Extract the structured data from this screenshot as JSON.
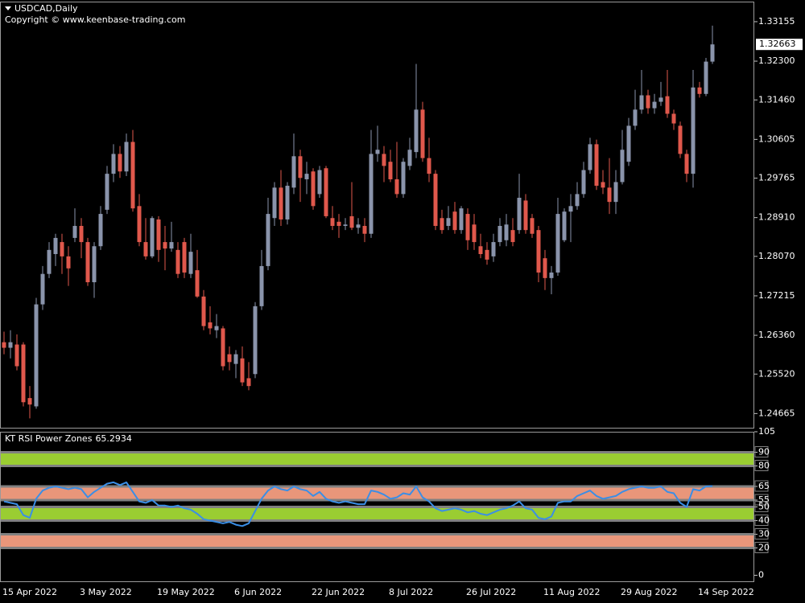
{
  "chart_data": [
    {
      "type": "candlestick",
      "title": "USDCAD,Daily",
      "subtitle": "Copyright © www.keenbase-trading.com",
      "up_color": "#8a94ab",
      "down_color": "#e0584c",
      "categories": [
        "15 Apr 2022",
        null,
        null,
        null,
        null,
        null,
        null,
        null,
        null,
        null,
        null,
        null,
        "3 May 2022",
        null,
        null,
        null,
        null,
        null,
        null,
        null,
        null,
        null,
        null,
        null,
        "19 May 2022",
        null,
        null,
        null,
        null,
        null,
        null,
        null,
        null,
        null,
        null,
        null,
        "6 Jun 2022",
        null,
        null,
        null,
        null,
        null,
        null,
        null,
        null,
        null,
        null,
        null,
        "22 Jun 2022",
        null,
        null,
        null,
        null,
        null,
        null,
        null,
        null,
        null,
        null,
        null,
        "8 Jul 2022",
        null,
        null,
        null,
        null,
        null,
        null,
        null,
        null,
        null,
        null,
        null,
        "26 Jul 2022",
        null,
        null,
        null,
        null,
        null,
        null,
        null,
        null,
        null,
        null,
        null,
        "11 Aug 2022",
        null,
        null,
        null,
        null,
        null,
        null,
        null,
        null,
        null,
        null,
        null,
        "29 Aug 2022",
        null,
        null,
        null,
        null,
        null,
        null,
        null,
        null,
        null,
        null,
        null,
        "14 Sep 2022",
        null,
        null
      ],
      "open": [
        1.2621,
        1.2609,
        1.2616,
        1.2616,
        1.25,
        1.2482,
        1.2703,
        1.2769,
        1.2812,
        1.2838,
        1.2807,
        1.2847,
        1.2873,
        1.2838,
        1.2751,
        1.2829,
        1.2908,
        1.2986,
        1.3029,
        1.2991,
        1.3055,
        1.2916,
        1.2838,
        1.2807,
        1.2887,
        1.2838,
        1.2824,
        1.2821,
        1.2838,
        1.2769,
        1.2777,
        1.272,
        1.2664,
        1.2647,
        1.2651,
        1.2595,
        1.2574,
        1.2586,
        1.2543,
        1.2552,
        1.2699,
        1.2786,
        1.289,
        1.2956,
        1.2887,
        1.2956,
        1.3024,
        1.2974,
        1.2991,
        1.2942,
        1.2998,
        1.289,
        1.2882,
        1.2873,
        1.2894,
        1.2869,
        1.2873,
        1.2856,
        1.3029,
        1.3029,
        1.3012,
        1.2974,
        1.2942,
        1.3003,
        1.3033,
        1.3125,
        1.302,
        1.2986,
        1.289,
        1.2873,
        1.2904,
        1.2864,
        1.2899,
        1.2876,
        1.2829,
        1.2821,
        1.2807,
        1.2838,
        1.2842,
        1.2864,
        1.2864,
        1.2928,
        1.289,
        1.2864,
        1.2803,
        1.276,
        1.2772,
        1.2842,
        1.2904,
        1.2916,
        1.2942,
        1.2994,
        1.305,
        1.2968,
        1.2956,
        1.2925,
        1.2968,
        1.3012,
        1.309,
        1.3125,
        1.3156,
        1.3128,
        1.3142,
        1.3154,
        1.3116,
        1.309,
        1.3029,
        1.2986,
        1.3173,
        1.3159,
        1.3229
      ],
      "high": [
        1.2644,
        1.2647,
        1.2638,
        1.2621,
        1.2526,
        1.2717,
        1.2786,
        1.2838,
        1.2856,
        1.2856,
        1.2829,
        1.2911,
        1.289,
        1.2847,
        1.2838,
        1.2916,
        1.3003,
        1.305,
        1.3046,
        1.3073,
        1.3081,
        1.2942,
        1.289,
        1.2894,
        1.2894,
        1.2873,
        1.2882,
        1.2838,
        1.2847,
        1.2856,
        1.2821,
        1.2734,
        1.2699,
        1.2682,
        1.2656,
        1.2612,
        1.2604,
        1.2612,
        1.2578,
        1.2708,
        1.2821,
        1.2934,
        1.2968,
        1.2994,
        1.2968,
        1.3073,
        1.3038,
        1.3012,
        1.2998,
        1.3003,
        1.3003,
        1.2916,
        1.2899,
        1.289,
        1.2968,
        1.289,
        1.289,
        1.3081,
        1.309,
        1.3046,
        1.3038,
        1.3055,
        1.302,
        1.3064,
        1.3224,
        1.3142,
        1.3064,
        1.2994,
        1.2908,
        1.2916,
        1.2925,
        1.2916,
        1.2911,
        1.2899,
        1.2856,
        1.2838,
        1.2856,
        1.289,
        1.2899,
        1.289,
        1.2986,
        1.2942,
        1.2899,
        1.2873,
        1.2821,
        1.2786,
        1.2934,
        1.2911,
        1.2942,
        1.2968,
        1.3012,
        1.3064,
        1.306,
        1.2994,
        1.302,
        1.2994,
        1.3081,
        1.3107,
        1.3168,
        1.3211,
        1.3168,
        1.3159,
        1.3185,
        1.3211,
        1.3125,
        1.3099,
        1.3038,
        1.3211,
        1.3185,
        1.3237,
        1.3307
      ],
      "low": [
        1.2595,
        1.2586,
        1.256,
        1.2482,
        1.2456,
        1.2477,
        1.2691,
        1.276,
        1.2786,
        1.2769,
        1.2743,
        1.2838,
        1.2803,
        1.2743,
        1.2717,
        1.2821,
        1.2899,
        1.2968,
        1.2977,
        1.2981,
        1.2904,
        1.2829,
        1.28,
        1.2803,
        1.2795,
        1.2777,
        1.2817,
        1.276,
        1.276,
        1.276,
        1.2717,
        1.2647,
        1.2638,
        1.263,
        1.256,
        1.256,
        1.2543,
        1.2526,
        1.2517,
        1.2543,
        1.2691,
        1.2777,
        1.2873,
        1.2873,
        1.2876,
        1.2942,
        1.2925,
        1.2942,
        1.2908,
        1.2934,
        1.289,
        1.2864,
        1.2847,
        1.2864,
        1.2864,
        1.2856,
        1.2838,
        1.2847,
        1.3012,
        1.2968,
        1.2968,
        1.2934,
        1.2934,
        1.2994,
        1.302,
        1.3012,
        1.2968,
        1.2864,
        1.2856,
        1.2864,
        1.2856,
        1.2856,
        1.2821,
        1.2821,
        1.2803,
        1.2789,
        1.2795,
        1.2829,
        1.2829,
        1.2829,
        1.2856,
        1.2856,
        1.2847,
        1.2751,
        1.2734,
        1.2725,
        1.2765,
        1.2838,
        1.2838,
        1.2908,
        1.2934,
        1.2986,
        1.2951,
        1.2942,
        1.2899,
        1.2899,
        1.2963,
        1.3003,
        1.3081,
        1.3116,
        1.3116,
        1.3116,
        1.3133,
        1.3107,
        1.3081,
        1.302,
        1.2968,
        1.2956,
        1.3151,
        1.3154,
        1.3224
      ],
      "close": [
        1.2609,
        1.2621,
        1.2569,
        1.2491,
        1.2486,
        1.2703,
        1.2769,
        1.2821,
        1.2847,
        1.2807,
        1.2781,
        1.2873,
        1.2838,
        1.2751,
        1.2829,
        1.2899,
        1.2986,
        1.3029,
        1.2991,
        1.3055,
        1.2911,
        1.2838,
        1.2807,
        1.289,
        1.2821,
        1.2824,
        1.2838,
        1.2769,
        1.2772,
        1.2817,
        1.272,
        1.2656,
        1.2651,
        1.2656,
        1.2569,
        1.2578,
        1.2595,
        1.2534,
        1.2526,
        1.2699,
        1.2786,
        1.2899,
        1.2956,
        1.2887,
        1.296,
        1.3024,
        1.2977,
        1.2986,
        1.2916,
        1.2994,
        1.2894,
        1.2873,
        1.2873,
        1.2876,
        1.2869,
        1.2876,
        1.2856,
        1.3029,
        1.3038,
        1.3003,
        1.2974,
        1.2942,
        1.3012,
        1.3038,
        1.3125,
        1.302,
        1.2986,
        1.2873,
        1.2864,
        1.289,
        1.2864,
        1.2911,
        1.2842,
        1.2838,
        1.2812,
        1.28,
        1.2838,
        1.2873,
        1.2876,
        1.2838,
        1.2934,
        1.2864,
        1.2856,
        1.2772,
        1.276,
        1.2772,
        1.2899,
        1.2904,
        1.2916,
        1.2942,
        1.2994,
        1.305,
        1.296,
        1.2956,
        1.2925,
        1.2968,
        1.3038,
        1.309,
        1.3125,
        1.3156,
        1.3128,
        1.3142,
        1.3151,
        1.3116,
        1.3095,
        1.3029,
        1.2986,
        1.3173,
        1.3159,
        1.3229,
        1.32663
      ],
      "ylim": [
        1.2434,
        1.3359
      ],
      "yticks": [
        1.33155,
        {
          "value": 1.323,
          "label": "1.32300"
        },
        {
          "value": 1.3146,
          "label": "1.31460"
        },
        1.30605,
        1.29765,
        {
          "value": 1.2891,
          "label": "1.28910"
        },
        {
          "value": 1.2807,
          "label": "1.28070"
        },
        1.27215,
        {
          "value": 1.2636,
          "label": "1.26360"
        },
        {
          "value": 1.2552,
          "label": "1.25520"
        },
        1.24665
      ]
    },
    {
      "type": "line",
      "title": "KT RSI Power Zones",
      "color": "#3a8ee6",
      "values": [
        54,
        53,
        52,
        44,
        42,
        56,
        62,
        64,
        65,
        64,
        63,
        64,
        63,
        57,
        61,
        64,
        67,
        68,
        66,
        68,
        61,
        54,
        53,
        55,
        51,
        51,
        50,
        51,
        49,
        48,
        45,
        41,
        40,
        39,
        38,
        39,
        37,
        36,
        38,
        47,
        56,
        62,
        65,
        63,
        62,
        65,
        63,
        62,
        58,
        61,
        56,
        54,
        53,
        54,
        53,
        52,
        52,
        62,
        61,
        59,
        56,
        57,
        60,
        59,
        65,
        57,
        54,
        49,
        47,
        48,
        49,
        48,
        46,
        47,
        45,
        44,
        46,
        48,
        49,
        51,
        54,
        49,
        48,
        42,
        41,
        43,
        53,
        54,
        54,
        58,
        60,
        62,
        58,
        56,
        57,
        58,
        61,
        63,
        64,
        65,
        64,
        64,
        65,
        61,
        60,
        53,
        50,
        63,
        62,
        65,
        65.2934
      ],
      "zones": [
        {
          "from": 80,
          "to": 90,
          "color": "#9acd32"
        },
        {
          "from": 55,
          "to": 65,
          "color": "#e9967a"
        },
        {
          "from": 40,
          "to": 50,
          "color": "#9acd32"
        },
        {
          "from": 20,
          "to": 30,
          "color": "#e9967a"
        }
      ],
      "zone_edge_color": "#808080",
      "ylim": [
        -5,
        105
      ],
      "yticks": [
        105,
        90,
        80,
        65,
        55,
        50,
        40,
        30,
        20,
        0
      ]
    }
  ]
}
